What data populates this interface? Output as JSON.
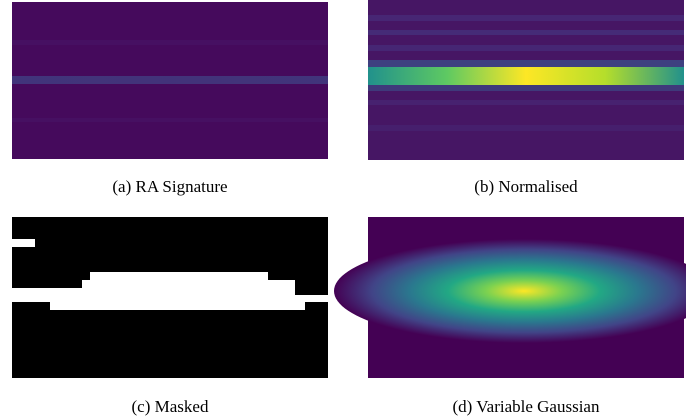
{
  "figure": {
    "captions": [
      "(a) RA Signature",
      "(b) Normalised",
      "(c) Masked",
      "(d) Variable Gaussian"
    ]
  }
}
